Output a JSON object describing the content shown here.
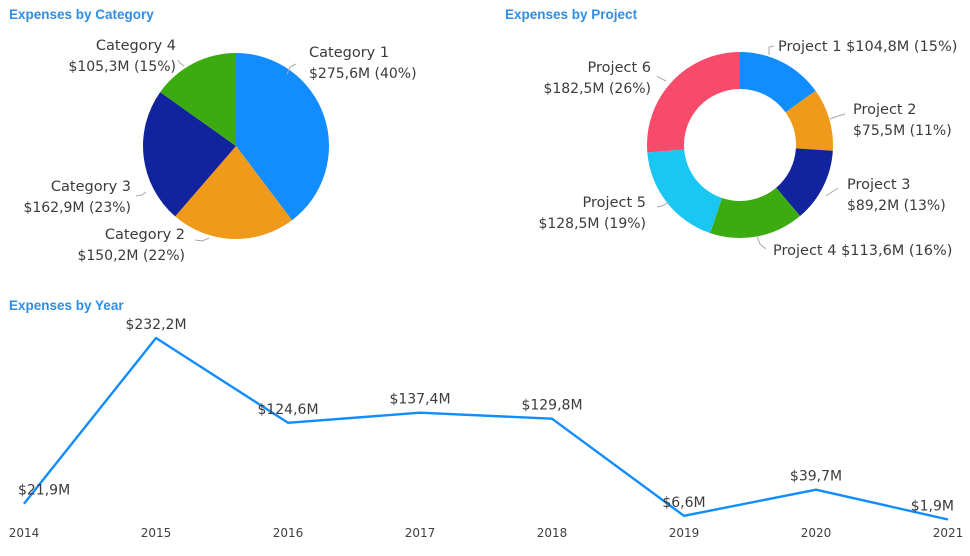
{
  "chart_data": [
    {
      "type": "pie",
      "title": "Expenses by Category",
      "slices": [
        {
          "name": "Category 1",
          "value": 275.6,
          "label": "$275,6M (40%)",
          "color": "#118dff"
        },
        {
          "name": "Category 2",
          "value": 150.2,
          "label": "$150,2M (22%)",
          "color": "#f09a1b"
        },
        {
          "name": "Category 3",
          "value": 162.9,
          "label": "$162,9M (23%)",
          "color": "#12239e"
        },
        {
          "name": "Category 4",
          "value": 105.3,
          "label": "$105,3M (15%)",
          "color": "#3bab10"
        }
      ]
    },
    {
      "type": "pie",
      "donut": true,
      "title": "Expenses by Project",
      "slices": [
        {
          "name": "Project 1",
          "value": 104.8,
          "label": "$104,8M (15%)",
          "color": "#118dff"
        },
        {
          "name": "Project 2",
          "value": 75.5,
          "label": "$75,5M (11%)",
          "color": "#f09a1b"
        },
        {
          "name": "Project 3",
          "value": 89.2,
          "label": "$89,2M (13%)",
          "color": "#12239e"
        },
        {
          "name": "Project 4",
          "value": 113.6,
          "label": "$113,6M (16%)",
          "color": "#3bab10"
        },
        {
          "name": "Project 5",
          "value": 128.5,
          "label": "$128,5M (19%)",
          "color": "#1ac7f2"
        },
        {
          "name": "Project 6",
          "value": 182.5,
          "label": "$182,5M (26%)",
          "color": "#f84b6b"
        }
      ]
    },
    {
      "type": "line",
      "title": "Expenses by Year",
      "x": [
        "2014",
        "2015",
        "2016",
        "2017",
        "2018",
        "2019",
        "2020",
        "2021"
      ],
      "values": [
        21.9,
        232.2,
        124.6,
        137.4,
        129.8,
        6.6,
        39.7,
        1.9
      ],
      "labels": [
        "$21,9M",
        "$232,2M",
        "$124,6M",
        "$137,4M",
        "$129,8M",
        "$6,6M",
        "$39,7M",
        "$1,9M"
      ],
      "ylim": [
        0,
        232.2
      ],
      "color": "#118dff",
      "grid": false
    }
  ]
}
